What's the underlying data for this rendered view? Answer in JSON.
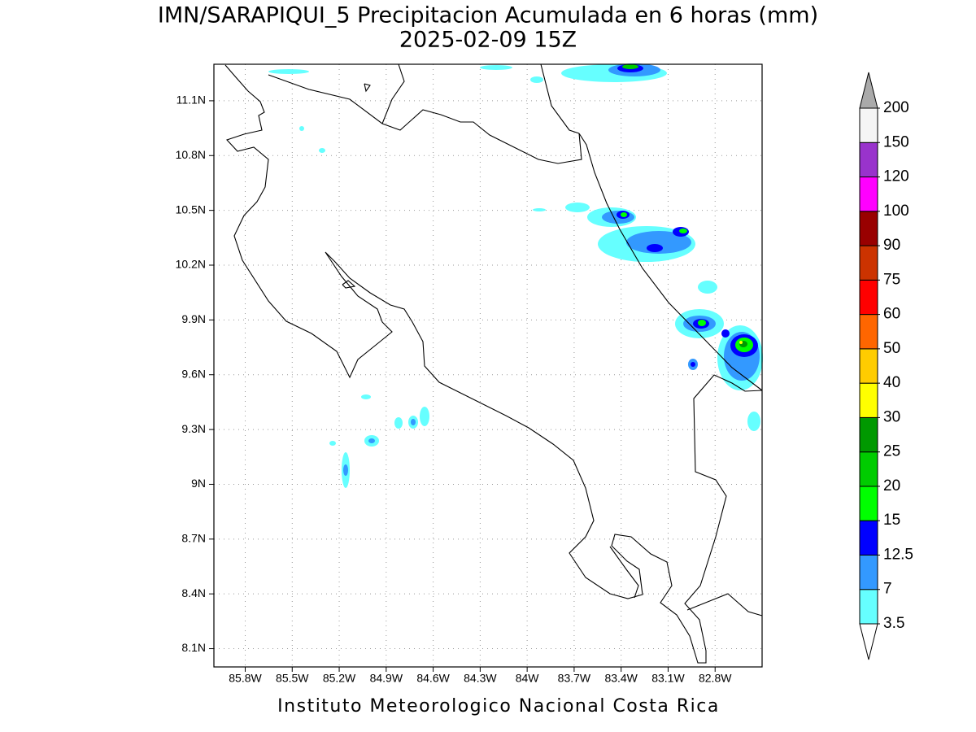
{
  "title": "IMN/SARAPIQUI_5 Precipitacion Acumulada en 6 horas (mm)",
  "subtitle": "2025-02-09 15Z",
  "footer": "Instituto Meteorologico Nacional Costa Rica",
  "map": {
    "xlim": [
      -86.0,
      -82.5
    ],
    "ylim": [
      8.0,
      11.3
    ],
    "grid": true,
    "xticks": [
      {
        "value": -85.8,
        "label": "85.8W"
      },
      {
        "value": -85.5,
        "label": "85.5W"
      },
      {
        "value": -85.2,
        "label": "85.2W"
      },
      {
        "value": -84.9,
        "label": "84.9W"
      },
      {
        "value": -84.6,
        "label": "84.6W"
      },
      {
        "value": -84.3,
        "label": "84.3W"
      },
      {
        "value": -84.0,
        "label": "84W"
      },
      {
        "value": -83.7,
        "label": "83.7W"
      },
      {
        "value": -83.4,
        "label": "83.4W"
      },
      {
        "value": -83.1,
        "label": "83.1W"
      },
      {
        "value": -82.8,
        "label": "82.8W"
      }
    ],
    "yticks": [
      {
        "value": 8.1,
        "label": "8.1N"
      },
      {
        "value": 8.4,
        "label": "8.4N"
      },
      {
        "value": 8.7,
        "label": "8.7N"
      },
      {
        "value": 9.0,
        "label": "9N"
      },
      {
        "value": 9.3,
        "label": "9.3N"
      },
      {
        "value": 9.6,
        "label": "9.6N"
      },
      {
        "value": 9.9,
        "label": "9.9N"
      },
      {
        "value": 10.2,
        "label": "10.2N"
      },
      {
        "value": 10.5,
        "label": "10.5N"
      },
      {
        "value": 10.8,
        "label": "10.8N"
      },
      {
        "value": 11.1,
        "label": "11.1N"
      }
    ]
  },
  "colorbar": {
    "levels": [
      3.5,
      7,
      12.5,
      15,
      20,
      25,
      30,
      40,
      50,
      60,
      75,
      90,
      100,
      120,
      150,
      200
    ],
    "colors": [
      "#66ffff",
      "#3399ff",
      "#0000ff",
      "#00ff00",
      "#00cc00",
      "#009900",
      "#ffff00",
      "#ffcc00",
      "#ff6600",
      "#ff0000",
      "#cc3300",
      "#990000",
      "#ff00ff",
      "#9933cc",
      "#f5f5f5"
    ],
    "under_color": "#ffffff",
    "over_color": "#aaaaaa"
  }
}
